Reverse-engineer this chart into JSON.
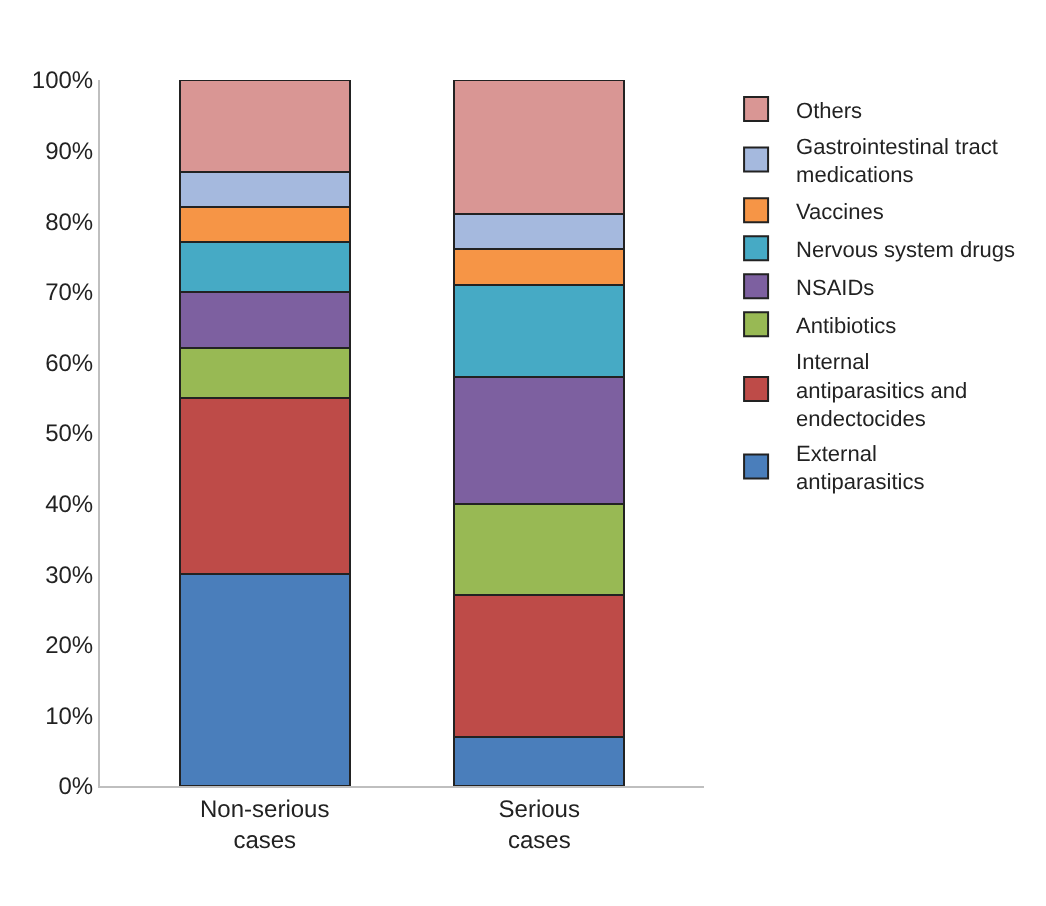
{
  "chart_data": {
    "type": "bar",
    "stacked": true,
    "categories": [
      "Non-serious cases",
      "Serious cases"
    ],
    "series": [
      {
        "name": "External antiparasitics",
        "color": "#4a7ebb",
        "values": [
          30,
          7
        ]
      },
      {
        "name": "Internal antiparasitics and endectocides",
        "color": "#be4b48",
        "values": [
          25,
          20
        ]
      },
      {
        "name": "Antibiotics",
        "color": "#98b954",
        "values": [
          7,
          13
        ]
      },
      {
        "name": "NSAIDs",
        "color": "#7d60a0",
        "values": [
          8,
          18
        ]
      },
      {
        "name": "Nervous system drugs",
        "color": "#46aac5",
        "values": [
          7,
          13
        ]
      },
      {
        "name": "Vaccines",
        "color": "#f69546",
        "values": [
          5,
          5
        ]
      },
      {
        "name": "Gastrointestinal tract medications",
        "color": "#a5b9de",
        "values": [
          5,
          5
        ]
      },
      {
        "name": "Others",
        "color": "#d99694",
        "values": [
          13,
          19
        ]
      }
    ],
    "ylim": [
      0,
      100
    ],
    "yticks": [
      {
        "value": 0,
        "label": "0%"
      },
      {
        "value": 10,
        "label": "10%"
      },
      {
        "value": 20,
        "label": "20%"
      },
      {
        "value": 30,
        "label": "30%"
      },
      {
        "value": 40,
        "label": "40%"
      },
      {
        "value": 50,
        "label": "50%"
      },
      {
        "value": 60,
        "label": "60%"
      },
      {
        "value": 70,
        "label": "70%"
      },
      {
        "value": 80,
        "label": "80%"
      },
      {
        "value": 90,
        "label": "90%"
      },
      {
        "value": 100,
        "label": "100%"
      }
    ],
    "legend": "right"
  }
}
